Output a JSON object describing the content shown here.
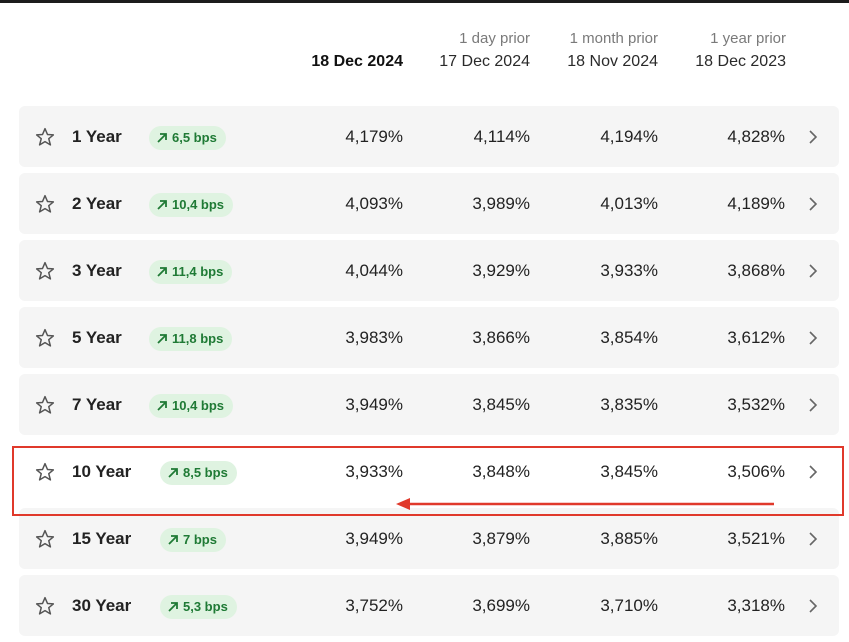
{
  "header": {
    "columns": [
      {
        "sub": "",
        "date": "18 Dec 2024"
      },
      {
        "sub": "1 day prior",
        "date": "17 Dec 2024"
      },
      {
        "sub": "1 month prior",
        "date": "18 Nov 2024"
      },
      {
        "sub": "1 year prior",
        "date": "18 Dec 2023"
      }
    ]
  },
  "rows": [
    {
      "tenor": "1 Year",
      "change": "6,5 bps",
      "values": [
        "4,179%",
        "4,114%",
        "4,194%",
        "4,828%"
      ]
    },
    {
      "tenor": "2 Year",
      "change": "10,4 bps",
      "values": [
        "4,093%",
        "3,989%",
        "4,013%",
        "4,189%"
      ]
    },
    {
      "tenor": "3 Year",
      "change": "11,4 bps",
      "values": [
        "4,044%",
        "3,929%",
        "3,933%",
        "3,868%"
      ]
    },
    {
      "tenor": "5 Year",
      "change": "11,8 bps",
      "values": [
        "3,983%",
        "3,866%",
        "3,854%",
        "3,612%"
      ]
    },
    {
      "tenor": "7 Year",
      "change": "10,4 bps",
      "values": [
        "3,949%",
        "3,845%",
        "3,835%",
        "3,532%"
      ]
    },
    {
      "tenor": "10 Year",
      "change": "8,5 bps",
      "values": [
        "3,933%",
        "3,848%",
        "3,845%",
        "3,506%"
      ]
    },
    {
      "tenor": "15 Year",
      "change": "7 bps",
      "values": [
        "3,949%",
        "3,879%",
        "3,885%",
        "3,521%"
      ]
    },
    {
      "tenor": "30 Year",
      "change": "5,3 bps",
      "values": [
        "3,752%",
        "3,699%",
        "3,710%",
        "3,318%"
      ]
    }
  ],
  "icons": {
    "favorite": "star-outline-icon",
    "change": "arrow-up-right-icon",
    "row_link": "chevron-right-icon"
  },
  "colors": {
    "badge_bg": "#dff3e1",
    "badge_text": "#1f7a35",
    "annotation": "#e0392b",
    "row_bg": "#f5f5f5"
  },
  "annotation": {
    "highlighted_tenor": "10 Year"
  }
}
